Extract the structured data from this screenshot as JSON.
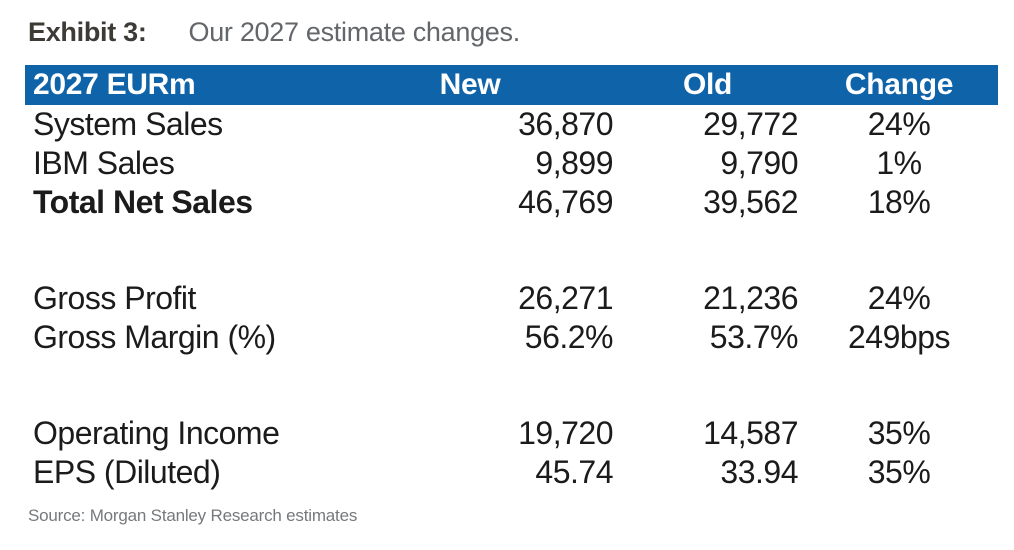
{
  "exhibit": {
    "label": "Exhibit 3:",
    "title": "Our 2027 estimate changes."
  },
  "table": {
    "columns": {
      "metric": "2027 EURm",
      "new": "New",
      "old": "Old",
      "change": "Change"
    },
    "rows": [
      {
        "label": "System Sales",
        "new": "36,870",
        "old": "29,772",
        "change": "24%",
        "bold": false
      },
      {
        "label": "IBM Sales",
        "new": "9,899",
        "old": "9,790",
        "change": "1%",
        "bold": false
      },
      {
        "label": "Total Net Sales",
        "new": "46,769",
        "old": "39,562",
        "change": "18%",
        "bold": true
      },
      {
        "label": "Gross Profit",
        "new": "26,271",
        "old": "21,236",
        "change": "24%",
        "bold": false
      },
      {
        "label": "Gross Margin (%)",
        "new": "56.2%",
        "old": "53.7%",
        "change": "249bps",
        "bold": false
      },
      {
        "label": "Operating Income",
        "new": "19,720",
        "old": "14,587",
        "change": "35%",
        "bold": false
      },
      {
        "label": "EPS (Diluted)",
        "new": "45.74",
        "old": "33.94",
        "change": "35%",
        "bold": false
      }
    ]
  },
  "source": "Source: Morgan Stanley Research estimates",
  "colors": {
    "header_bg": "#0f63a9",
    "header_text": "#ffffff",
    "body_text": "#1b1b1b",
    "title_bold": "#3e3a36",
    "subtitle": "#63666a",
    "source": "#76797c"
  }
}
